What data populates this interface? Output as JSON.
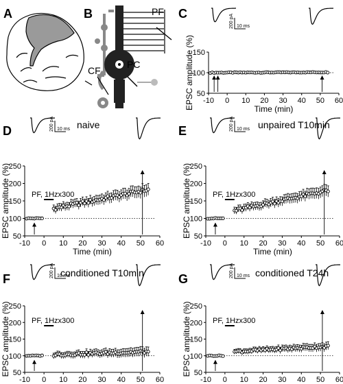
{
  "panels": [
    {
      "letter": "A"
    },
    {
      "letter": "B",
      "labels": {
        "pf": "PF",
        "pc": "PC",
        "cf": "CF"
      }
    },
    {
      "letter": "C",
      "title": "",
      "protocol": "",
      "ylabel": "EPSC amplitude (%)",
      "xlabel": "Time (min)",
      "scale_pa": "200 pA",
      "scale_ms": "10 ms"
    },
    {
      "letter": "D",
      "title": "naive",
      "protocol": "PF, 1Hzx300",
      "ylabel": "EPSC amplitude (%)",
      "xlabel": "Time (min)",
      "scale_pa": "200 pA",
      "scale_ms": "10 ms"
    },
    {
      "letter": "E",
      "title": "unpaired T10min",
      "protocol": "PF, 1Hzx300",
      "ylabel": "EPSC amplitude (%)",
      "xlabel": "Time (min)",
      "scale_pa": "200 pA",
      "scale_ms": "10 ms"
    },
    {
      "letter": "F",
      "title": "conditioned T10min",
      "protocol": "PF, 1Hzx300",
      "ylabel": "EPSC amplitude (%)",
      "xlabel": "Time (min)",
      "scale_pa": "200 pA",
      "scale_ms": "10 ms"
    },
    {
      "letter": "G",
      "title": "conditioned T24h",
      "protocol": "PF, 1Hzx300",
      "ylabel": "EPSC amplitude (%)",
      "xlabel": "Time (min)",
      "scale_pa": "200 pA",
      "scale_ms": "10 ms"
    }
  ],
  "chart_data": [
    {
      "panel": "C",
      "type": "scatter",
      "xlabel": "Time (min)",
      "ylabel": "EPSC amplitude (%)",
      "xlim": [
        -10,
        60
      ],
      "ylim": [
        50,
        150
      ],
      "xticks": [
        -10,
        0,
        10,
        20,
        30,
        40,
        50,
        60
      ],
      "yticks": [
        50,
        100,
        150
      ],
      "baseline": 100,
      "arrows_x": [
        -7,
        -5,
        51
      ],
      "stimulus_bar": null,
      "series": [
        {
          "segments": [
            {
              "t_start": -9,
              "t_end": 54,
              "start": 100,
              "end": 101,
              "err": 3
            }
          ]
        }
      ]
    },
    {
      "panel": "D",
      "type": "scatter",
      "xlabel": "Time (min)",
      "ylabel": "EPSC amplitude (%)",
      "xlim": [
        -10,
        60
      ],
      "ylim": [
        50,
        250
      ],
      "xticks": [
        -10,
        0,
        10,
        20,
        30,
        40,
        50,
        60
      ],
      "yticks": [
        50,
        100,
        150,
        200,
        250
      ],
      "baseline": 100,
      "arrows_x": [
        -5,
        51
      ],
      "stimulus_bar": [
        0,
        5
      ],
      "series": [
        {
          "segments": [
            {
              "t_start": -9,
              "t_end": -1,
              "start": 100,
              "end": 100,
              "err": 4
            },
            {
              "t_start": 5,
              "t_end": 54,
              "start": 128,
              "end": 182,
              "err": 17
            }
          ]
        }
      ]
    },
    {
      "panel": "E",
      "type": "scatter",
      "xlabel": "Time (min)",
      "ylabel": "EPSC amplitude (%)",
      "xlim": [
        -10,
        60
      ],
      "ylim": [
        50,
        250
      ],
      "xticks": [
        -10,
        0,
        10,
        20,
        30,
        40,
        50,
        60
      ],
      "yticks": [
        50,
        100,
        150,
        200,
        250
      ],
      "baseline": 100,
      "arrows_x": [
        -5,
        52
      ],
      "stimulus_bar": [
        0,
        5
      ],
      "series": [
        {
          "segments": [
            {
              "t_start": -9,
              "t_end": -1,
              "start": 100,
              "end": 100,
              "err": 4
            },
            {
              "t_start": 5,
              "t_end": 54,
              "start": 122,
              "end": 180,
              "err": 16
            }
          ]
        }
      ]
    },
    {
      "panel": "F",
      "type": "scatter",
      "xlabel": "Time (min)",
      "ylabel": "EPSC amplitude (%)",
      "xlim": [
        -10,
        60
      ],
      "ylim": [
        50,
        250
      ],
      "xticks": [
        -10,
        0,
        10,
        20,
        30,
        40,
        50,
        60
      ],
      "yticks": [
        50,
        100,
        150,
        200,
        250
      ],
      "baseline": 100,
      "arrows_x": [
        -5,
        51
      ],
      "stimulus_bar": [
        0,
        5
      ],
      "series": [
        {
          "segments": [
            {
              "t_start": -9,
              "t_end": -1,
              "start": 100,
              "end": 100,
              "err": 4
            },
            {
              "t_start": 5,
              "t_end": 54,
              "start": 103,
              "end": 112,
              "err": 14
            }
          ]
        }
      ]
    },
    {
      "panel": "G",
      "type": "scatter",
      "xlabel": "Time (min)",
      "ylabel": "EPSC amplitude (%)",
      "xlim": [
        -10,
        60
      ],
      "ylim": [
        50,
        250
      ],
      "xticks": [
        -10,
        0,
        10,
        20,
        30,
        40,
        50,
        60
      ],
      "yticks": [
        50,
        100,
        150,
        200,
        250
      ],
      "baseline": 100,
      "arrows_x": [
        -5,
        51
      ],
      "stimulus_bar": [
        0,
        5
      ],
      "series": [
        {
          "segments": [
            {
              "t_start": -9,
              "t_end": -1,
              "start": 100,
              "end": 100,
              "err": 4
            },
            {
              "t_start": 5,
              "t_end": 54,
              "start": 112,
              "end": 128,
              "err": 12
            }
          ]
        }
      ]
    }
  ]
}
